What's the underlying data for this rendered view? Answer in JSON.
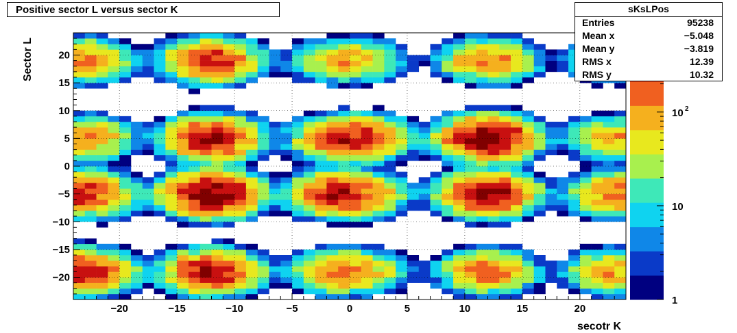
{
  "chart_data": {
    "type": "heatmap",
    "title": "Positive sector L versus sector K",
    "xlabel": "secotr K",
    "ylabel": "Sector L",
    "xlim": [
      -24,
      24
    ],
    "ylim": [
      -24,
      24
    ],
    "bin_width": 1,
    "x_ticks": [
      -20,
      -15,
      -10,
      -5,
      0,
      5,
      10,
      15,
      20
    ],
    "x_tick_labels": [
      "−20",
      "−15",
      "−10",
      "−5",
      "0",
      "5",
      "10",
      "15",
      "20"
    ],
    "y_ticks": [
      20,
      15,
      10,
      5,
      0,
      -5,
      -10,
      -15,
      -20
    ],
    "y_tick_labels": [
      "20",
      "15",
      "10",
      "5",
      "0",
      "−5",
      "−10",
      "−15",
      "−20"
    ],
    "colorbar": {
      "scale": "log",
      "range": [
        1,
        700
      ],
      "ticks": [
        1,
        10,
        100
      ],
      "tick_labels": [
        "1",
        "10",
        "10",
        "2"
      ],
      "palette": [
        "#000080",
        "#0a3ac8",
        "#0f87e8",
        "#0fd3f0",
        "#3ee8b8",
        "#a8f04e",
        "#e8e81e",
        "#f5b01e",
        "#f06020",
        "#c81010",
        "#800000"
      ]
    },
    "grid": true,
    "clusters_note_free": true,
    "blobs": [
      {
        "cx": -12,
        "cy": -5,
        "peak": 650
      },
      {
        "cx": -12,
        "cy": 5,
        "peak": 400
      },
      {
        "cx": -12,
        "cy": 19,
        "peak": 260
      },
      {
        "cx": -12,
        "cy": -19,
        "peak": 350
      },
      {
        "cx": -23,
        "cy": -5,
        "peak": 280
      },
      {
        "cx": -23,
        "cy": 5,
        "peak": 130
      },
      {
        "cx": -23,
        "cy": 19,
        "peak": 120
      },
      {
        "cx": -23,
        "cy": -19,
        "peak": 300
      },
      {
        "cx": -1,
        "cy": -5,
        "peak": 300
      },
      {
        "cx": -1,
        "cy": 5,
        "peak": 150
      },
      {
        "cx": -1,
        "cy": 19,
        "peak": 70
      },
      {
        "cx": -1,
        "cy": -19,
        "peak": 110
      },
      {
        "cx": 1,
        "cy": -5,
        "peak": 90
      },
      {
        "cx": 1,
        "cy": 5,
        "peak": 240
      },
      {
        "cx": 1,
        "cy": 19,
        "peak": 40
      },
      {
        "cx": 1,
        "cy": -19,
        "peak": 60
      },
      {
        "cx": 12,
        "cy": -5,
        "peak": 420
      },
      {
        "cx": 12,
        "cy": 5,
        "peak": 600
      },
      {
        "cx": 12,
        "cy": 19,
        "peak": 130
      },
      {
        "cx": 12,
        "cy": -19,
        "peak": 160
      },
      {
        "cx": 23,
        "cy": -5,
        "peak": 150
      },
      {
        "cx": 23,
        "cy": 5,
        "peak": 90
      },
      {
        "cx": 23,
        "cy": 19,
        "peak": 50
      },
      {
        "cx": 23,
        "cy": -19,
        "peak": 110
      }
    ]
  },
  "stats": {
    "name": "sKsLPos",
    "rows": [
      {
        "label": "Entries",
        "value": "95238"
      },
      {
        "label": "Mean x",
        "value": "−5.048"
      },
      {
        "label": "Mean y",
        "value": "−3.819"
      },
      {
        "label": "RMS x",
        "value": "12.39"
      },
      {
        "label": "RMS y",
        "value": "10.32"
      }
    ]
  }
}
